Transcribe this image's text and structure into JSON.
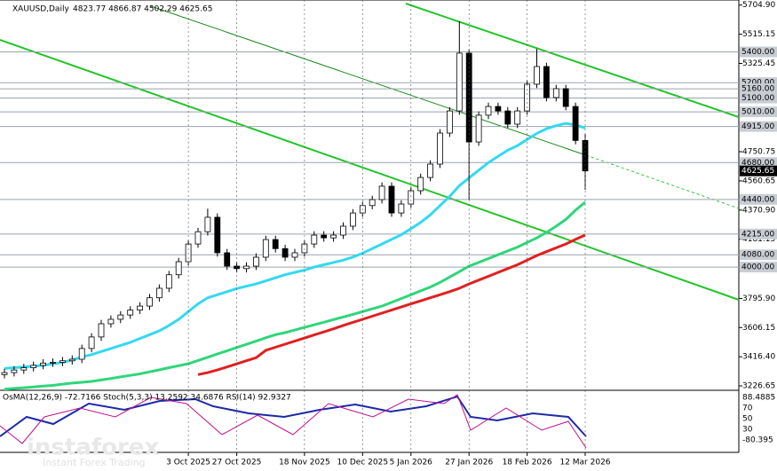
{
  "chart_data": {
    "type": "candlestick",
    "title": "XAUUSD,Daily",
    "ohlc_header": "4823.77 4866.87 4502.29 4625.65",
    "categories": [
      null,
      null,
      null,
      null,
      null,
      null,
      null,
      null,
      null,
      null,
      null,
      null,
      null,
      null,
      null,
      null,
      null,
      null,
      null,
      "3 Oct 2025",
      null,
      null,
      null,
      null,
      "27 Oct 2025",
      null,
      null,
      null,
      null,
      null,
      null,
      "18 Nov 2025",
      null,
      null,
      null,
      null,
      null,
      "10 Dec 2025",
      null,
      null,
      null,
      null,
      "5 Jan 2026",
      null,
      null,
      null,
      null,
      null,
      "27 Jan 2026",
      null,
      null,
      null,
      null,
      null,
      "18 Feb 2026",
      null,
      null,
      null,
      null,
      null,
      "12 Mar 2026"
    ],
    "open": [
      3300,
      3313,
      3330,
      3345,
      3360,
      3375,
      3380,
      3390,
      3400,
      3470,
      3545,
      3631,
      3660,
      3688,
      3720,
      3746,
      3800,
      3862,
      3950,
      4035,
      4150,
      4230,
      4324,
      4093,
      4006,
      3990,
      4006,
      4064,
      4179,
      4120,
      4064,
      4093,
      4150,
      4208,
      4190,
      4208,
      4266,
      4352,
      4400,
      4439,
      4526,
      4352,
      4410,
      4497,
      4583,
      4670,
      4872,
      5016,
      5392,
      4814,
      4988,
      5045,
      5016,
      4930,
      5016,
      5190,
      5305,
      5103,
      5161,
      5045,
      4823.77
    ],
    "high": [
      3338,
      3355,
      3370,
      3385,
      3400,
      3405,
      3415,
      3425,
      3495,
      3570,
      3656,
      3685,
      3713,
      3745,
      3771,
      3825,
      3887,
      3975,
      4060,
      4175,
      4255,
      4380,
      4349,
      4118,
      4031,
      4031,
      4089,
      4204,
      4204,
      4145,
      4118,
      4175,
      4233,
      4233,
      4233,
      4291,
      4377,
      4425,
      4464,
      4551,
      4551,
      4435,
      4522,
      4608,
      4695,
      4897,
      5041,
      5600,
      5417,
      5013,
      5070,
      5070,
      5041,
      5041,
      5215,
      5420,
      5330,
      5186,
      5186,
      5070,
      4866.87
    ],
    "low": [
      3275,
      3288,
      3305,
      3320,
      3335,
      3350,
      3355,
      3365,
      3375,
      3445,
      3520,
      3606,
      3635,
      3663,
      3695,
      3721,
      3775,
      3837,
      3925,
      4010,
      4125,
      4205,
      4068,
      3981,
      3965,
      3965,
      3981,
      4039,
      4095,
      4039,
      4039,
      4068,
      4125,
      4165,
      4165,
      4183,
      4241,
      4327,
      4375,
      4414,
      4327,
      4327,
      4385,
      4472,
      4558,
      4645,
      4847,
      4991,
      4440,
      4789,
      4963,
      4991,
      4905,
      4905,
      4991,
      5165,
      5078,
      5078,
      5020,
      4798.77,
      4502.29
    ],
    "close": [
      3313,
      3330,
      3345,
      3360,
      3375,
      3380,
      3390,
      3400,
      3470,
      3545,
      3631,
      3660,
      3688,
      3720,
      3746,
      3800,
      3862,
      3950,
      4035,
      4150,
      4230,
      4324,
      4093,
      4006,
      3990,
      4006,
      4064,
      4179,
      4120,
      4064,
      4093,
      4150,
      4208,
      4190,
      4208,
      4266,
      4352,
      4400,
      4439,
      4526,
      4352,
      4410,
      4497,
      4583,
      4670,
      4872,
      5016,
      5392,
      4814,
      4988,
      5045,
      5016,
      4930,
      5016,
      5190,
      5305,
      5103,
      5161,
      5045,
      4823.77,
      4625.65
    ],
    "series": [
      {
        "color": "#33d9f0",
        "values": [
          3340,
          3345,
          3350,
          3355,
          3360,
          3370,
          3380,
          3395,
          3415,
          3430,
          3450,
          3470,
          3490,
          3510,
          3535,
          3560,
          3585,
          3620,
          3660,
          3710,
          3760,
          3800,
          3820,
          3840,
          3860,
          3875,
          3890,
          3910,
          3930,
          3950,
          3965,
          3980,
          4000,
          4015,
          4030,
          4045,
          4065,
          4090,
          4120,
          4150,
          4180,
          4210,
          4250,
          4290,
          4340,
          4400,
          4460,
          4530,
          4580,
          4630,
          4680,
          4720,
          4760,
          4790,
          4830,
          4870,
          4900,
          4920,
          4935,
          4925,
          4905
        ]
      },
      {
        "color": "#2ed67a",
        "values": [
          3205,
          3210,
          3215,
          3220,
          3225,
          3230,
          3238,
          3245,
          3250,
          3256,
          3265,
          3275,
          3285,
          3295,
          3305,
          3318,
          3331,
          3345,
          3358,
          3371,
          3392,
          3413,
          3434,
          3455,
          3476,
          3497,
          3518,
          3540,
          3560,
          3573,
          3590,
          3607,
          3624,
          3641,
          3658,
          3675,
          3692,
          3710,
          3728,
          3746,
          3770,
          3795,
          3820,
          3845,
          3870,
          3900,
          3935,
          3970,
          4006,
          4030,
          4055,
          4080,
          4105,
          4130,
          4160,
          4190,
          4225,
          4266,
          4310,
          4370,
          4422
        ]
      },
      {
        "color": "#e02020",
        "values": [
          null,
          null,
          null,
          null,
          null,
          null,
          null,
          null,
          null,
          null,
          null,
          null,
          null,
          null,
          null,
          null,
          null,
          null,
          null,
          null,
          3300,
          3313,
          3330,
          3350,
          3370,
          3390,
          3410,
          3458,
          3478,
          3498,
          3518,
          3538,
          3558,
          3578,
          3598,
          3620,
          3640,
          3660,
          3680,
          3700,
          3720,
          3740,
          3760,
          3780,
          3800,
          3820,
          3840,
          3862,
          3890,
          3915,
          3940,
          3965,
          3990,
          4015,
          4045,
          4075,
          4100,
          4125,
          4150,
          4180,
          4208
        ]
      }
    ],
    "ylim": [
      3198,
      5738
    ],
    "yticks": [
      {
        "value": 5704.9,
        "label": "5704.90"
      },
      {
        "value": 5515.15,
        "label": "5515.15"
      },
      {
        "value": 5325.45,
        "label": "5325.45"
      },
      {
        "value": 4750.75,
        "label": "4750.75"
      },
      {
        "value": 4560.65,
        "label": "4560.65"
      },
      {
        "value": 4370.9,
        "label": "4370.90"
      },
      {
        "value": 4181.15,
        "label": "4181.15"
      },
      {
        "value": 3795.9,
        "label": "3795.90"
      },
      {
        "value": 3606.15,
        "label": "3606.15"
      },
      {
        "value": 3416.4,
        "label": "3416.40"
      },
      {
        "value": 3226.65,
        "label": "3226.65"
      }
    ],
    "levels": [
      {
        "value": 5400,
        "label": "5400.00"
      },
      {
        "value": 5200,
        "label": "5200.00"
      },
      {
        "value": 5160,
        "label": "5160.00"
      },
      {
        "value": 5100,
        "label": "5100.00"
      },
      {
        "value": 5010,
        "label": "5010.00"
      },
      {
        "value": 4915,
        "label": "4915.00"
      },
      {
        "value": 4680,
        "label": "4680.00"
      },
      {
        "value": 4440,
        "label": "4440.00"
      },
      {
        "value": 4215,
        "label": "4215.00"
      },
      {
        "value": 4080,
        "label": "4080.00"
      },
      {
        "value": 4000,
        "label": "4000.00"
      }
    ],
    "current_price": {
      "value": 4625.65,
      "label": "4625.65"
    },
    "indicator": {
      "title": "OsMA(12,26,9) -72.7166 Stoch(5,3,3) 13.2592 34.6876 RSI(14) 92.9327",
      "scale_labels": [
        "88.4885",
        "70",
        "50",
        "30",
        "-80.395"
      ]
    },
    "watermark": {
      "brand": "instaforex",
      "tagline": "Instant Forex Trading"
    }
  }
}
